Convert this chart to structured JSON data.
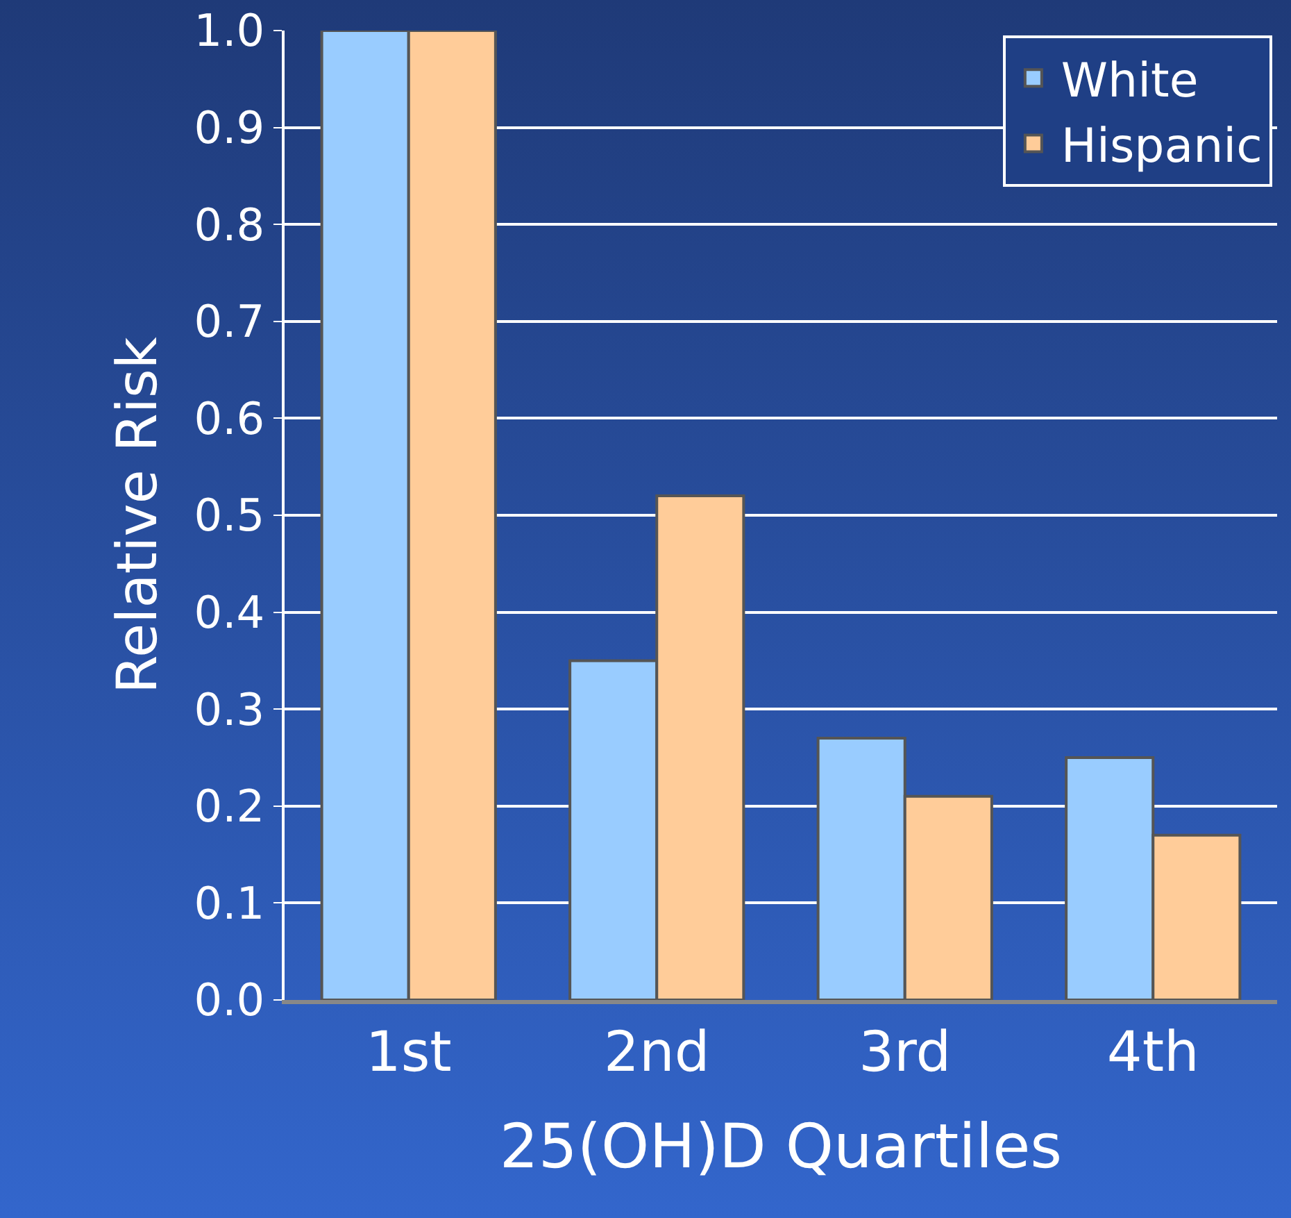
{
  "chart_data": {
    "type": "bar",
    "xlabel": "25(OH)D Quartiles",
    "ylabel": "Relative Risk",
    "categories": [
      "1st",
      "2nd",
      "3rd",
      "4th"
    ],
    "series": [
      {
        "name": "White",
        "color": "#99ccff",
        "values": [
          1.0,
          0.35,
          0.27,
          0.25
        ]
      },
      {
        "name": "Hispanic",
        "color": "#ffcc99",
        "values": [
          1.0,
          0.52,
          0.21,
          0.17
        ]
      }
    ],
    "ylim": [
      0,
      1
    ],
    "yticks": [
      {
        "value": 0,
        "label": "0.0"
      },
      0.1,
      0.2,
      0.3,
      0.4,
      0.5,
      0.6,
      0.7,
      0.8,
      0.9,
      {
        "value": 1,
        "label": "1.0"
      }
    ],
    "grid": "y",
    "legend": "top right"
  }
}
